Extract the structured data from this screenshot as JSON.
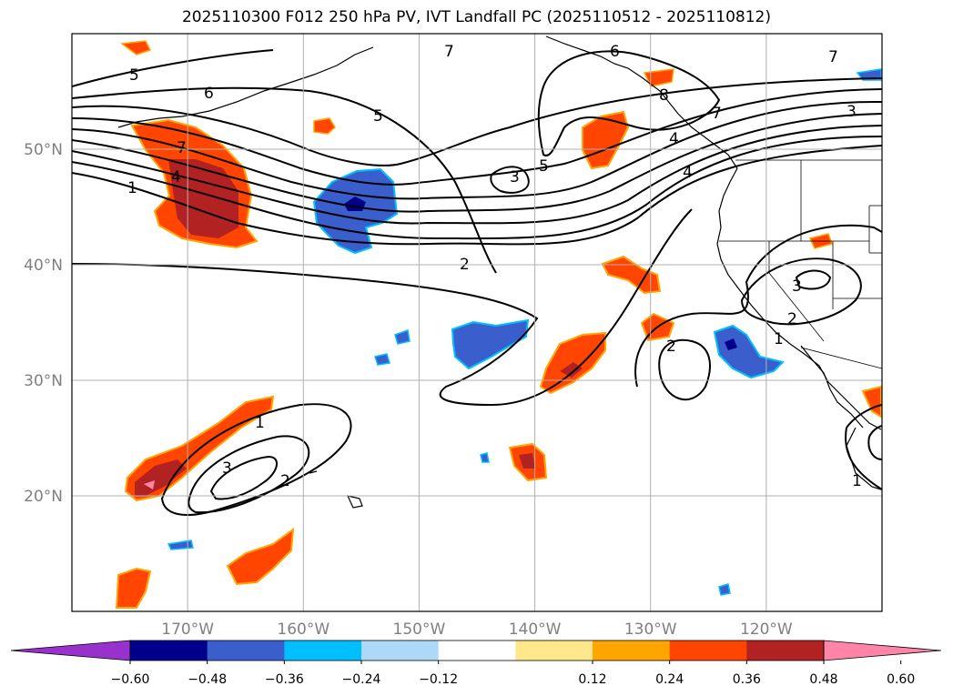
{
  "title": "2025110300 F012 250 hPa PV, IVT Landfall PC (2025110512 - 2025110812)",
  "map": {
    "extent": {
      "lon_min": -180,
      "lon_max": -110,
      "lat_min": 10,
      "lat_max": 60
    },
    "lat_ticks": [
      {
        "value": 50,
        "label": "50°N"
      },
      {
        "value": 40,
        "label": "40°N"
      },
      {
        "value": 30,
        "label": "30°N"
      },
      {
        "value": 20,
        "label": "20°N"
      }
    ],
    "lon_ticks": [
      {
        "value": -170,
        "label": "170°W"
      },
      {
        "value": -160,
        "label": "160°W"
      },
      {
        "value": -150,
        "label": "150°W"
      },
      {
        "value": -140,
        "label": "140°W"
      },
      {
        "value": -130,
        "label": "130°W"
      },
      {
        "value": -120,
        "label": "120°W"
      }
    ],
    "grid": true,
    "contour_labels": [
      "1",
      "2",
      "3",
      "4",
      "5",
      "6",
      "7",
      "8"
    ]
  },
  "colorbar": {
    "levels": [
      -0.6,
      -0.48,
      -0.36,
      -0.24,
      -0.12,
      0.12,
      0.24,
      0.36,
      0.48,
      0.6
    ],
    "tick_labels": [
      "−0.60",
      "−0.48",
      "−0.36",
      "−0.24",
      "−0.12",
      "0.12",
      "0.24",
      "0.36",
      "0.48",
      "0.60"
    ],
    "colors": [
      "#9932cc",
      "#00008b",
      "#3a5fcd",
      "#00bfff",
      "#add8f7",
      "#ffffff",
      "#ffe88c",
      "#ffa500",
      "#ff4500",
      "#b22222",
      "#ff85a8"
    ],
    "extend": "both"
  }
}
